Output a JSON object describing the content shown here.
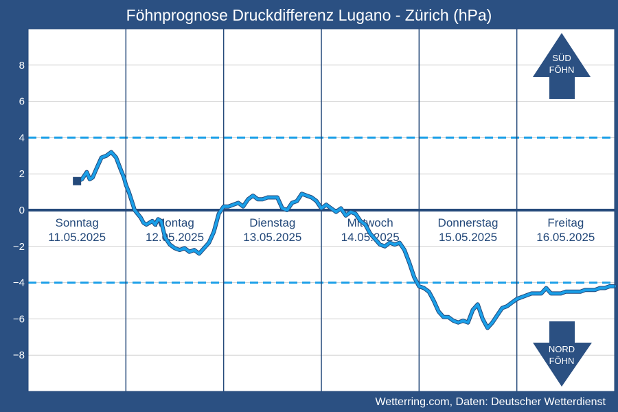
{
  "title": "Föhnprognose Druckdifferenz Lugano - Zürich (hPa)",
  "footer": "Wetterring.com, Daten: Deutscher Wetterdienst",
  "colors": {
    "background": "#2b5082",
    "plot_bg": "#ffffff",
    "series": "#1a9fe8",
    "series_outline": "#24497a",
    "threshold": "#1a9fe8",
    "zero_line": "#24497a",
    "grid": "#cfcfcf",
    "arrow": "#2b5082"
  },
  "arrows": {
    "up": {
      "line1": "SÜD",
      "line2": "FÖHN",
      "icon": "arrow-up-icon"
    },
    "down": {
      "line1": "NORD",
      "line2": "FÖHN",
      "icon": "arrow-down-icon"
    }
  },
  "chart_data": {
    "type": "line",
    "title": "Föhnprognose Druckdifferenz Lugano - Zürich (hPa)",
    "xlabel": "",
    "ylabel": "",
    "ylim": [
      -10,
      10
    ],
    "xlim": [
      0,
      6
    ],
    "yticks": [
      8,
      6,
      4,
      2,
      0,
      -2,
      -4,
      -6,
      -8
    ],
    "ytick_labels": [
      "8",
      "6",
      "4",
      "2",
      "0",
      "−2",
      "−4",
      "−6",
      "−8"
    ],
    "grid": true,
    "day_labels": [
      {
        "day": "Sonntag",
        "date": "11.05.2025"
      },
      {
        "day": "Montag",
        "date": "12.05.2025"
      },
      {
        "day": "Dienstag",
        "date": "13.05.2025"
      },
      {
        "day": "Mittwoch",
        "date": "14.05.2025"
      },
      {
        "day": "Donnerstag",
        "date": "15.05.2025"
      },
      {
        "day": "Freitag",
        "date": "16.05.2025"
      }
    ],
    "thresholds": [
      4,
      -4
    ],
    "series": [
      {
        "x": [
          0.5,
          0.55,
          0.6,
          0.63,
          0.66,
          0.7,
          0.75,
          0.8,
          0.85,
          0.9,
          0.95,
          0.98,
          1.0,
          1.03,
          1.06,
          1.09,
          1.12,
          1.15,
          1.18,
          1.21,
          1.24,
          1.27,
          1.3,
          1.33,
          1.36,
          1.4,
          1.45,
          1.5,
          1.55,
          1.6,
          1.65,
          1.7,
          1.75,
          1.8,
          1.85,
          1.9,
          1.95,
          2.0,
          2.05,
          2.1,
          2.15,
          2.2,
          2.25,
          2.3,
          2.35,
          2.4,
          2.45,
          2.5,
          2.55,
          2.6,
          2.65,
          2.7,
          2.75,
          2.8,
          2.85,
          2.9,
          2.95,
          3.0,
          3.05,
          3.1,
          3.15,
          3.2,
          3.25,
          3.3,
          3.35,
          3.4,
          3.45,
          3.5,
          3.55,
          3.6,
          3.65,
          3.7,
          3.75,
          3.8,
          3.85,
          3.9,
          3.95,
          4.0,
          4.05,
          4.1,
          4.15,
          4.2,
          4.25,
          4.3,
          4.35,
          4.4,
          4.45,
          4.5,
          4.55,
          4.6,
          4.65,
          4.7,
          4.75,
          4.8,
          4.85,
          4.9,
          4.95,
          5.0,
          5.05,
          5.1,
          5.15,
          5.2,
          5.25,
          5.3,
          5.35,
          5.4,
          5.45,
          5.5,
          5.55,
          5.6,
          5.65,
          5.7,
          5.75,
          5.8,
          5.85,
          5.9,
          5.95,
          6.0
        ],
        "values": [
          1.6,
          1.7,
          2.1,
          1.7,
          1.8,
          2.3,
          2.9,
          3.0,
          3.2,
          2.9,
          2.2,
          1.8,
          1.4,
          1.0,
          0.5,
          0.0,
          -0.2,
          -0.4,
          -0.7,
          -0.8,
          -0.7,
          -0.6,
          -0.8,
          -0.5,
          -0.6,
          -1.5,
          -1.9,
          -2.1,
          -2.2,
          -2.1,
          -2.3,
          -2.2,
          -2.4,
          -2.1,
          -1.8,
          -1.2,
          -0.2,
          0.2,
          0.2,
          0.3,
          0.4,
          0.2,
          0.6,
          0.8,
          0.6,
          0.6,
          0.7,
          0.7,
          0.7,
          0.1,
          0.0,
          0.4,
          0.5,
          0.9,
          0.8,
          0.7,
          0.5,
          0.1,
          0.3,
          0.1,
          -0.1,
          0.1,
          -0.3,
          -0.1,
          -0.2,
          -0.6,
          -0.8,
          -1.3,
          -1.6,
          -1.9,
          -2.0,
          -1.8,
          -1.9,
          -1.8,
          -2.2,
          -2.9,
          -3.7,
          -4.2,
          -4.3,
          -4.5,
          -5.0,
          -5.6,
          -5.9,
          -5.9,
          -6.1,
          -6.2,
          -6.1,
          -6.2,
          -5.5,
          -5.2,
          -6.0,
          -6.5,
          -6.2,
          -5.8,
          -5.4,
          -5.3,
          -5.1,
          -4.9,
          -4.8,
          -4.7,
          -4.6,
          -4.6,
          -4.6,
          -4.3,
          -4.6,
          -4.6,
          -4.6,
          -4.5,
          -4.5,
          -4.5,
          -4.5,
          -4.4,
          -4.4,
          -4.4,
          -4.3,
          -4.3,
          -4.2,
          -4.2
        ]
      }
    ]
  }
}
